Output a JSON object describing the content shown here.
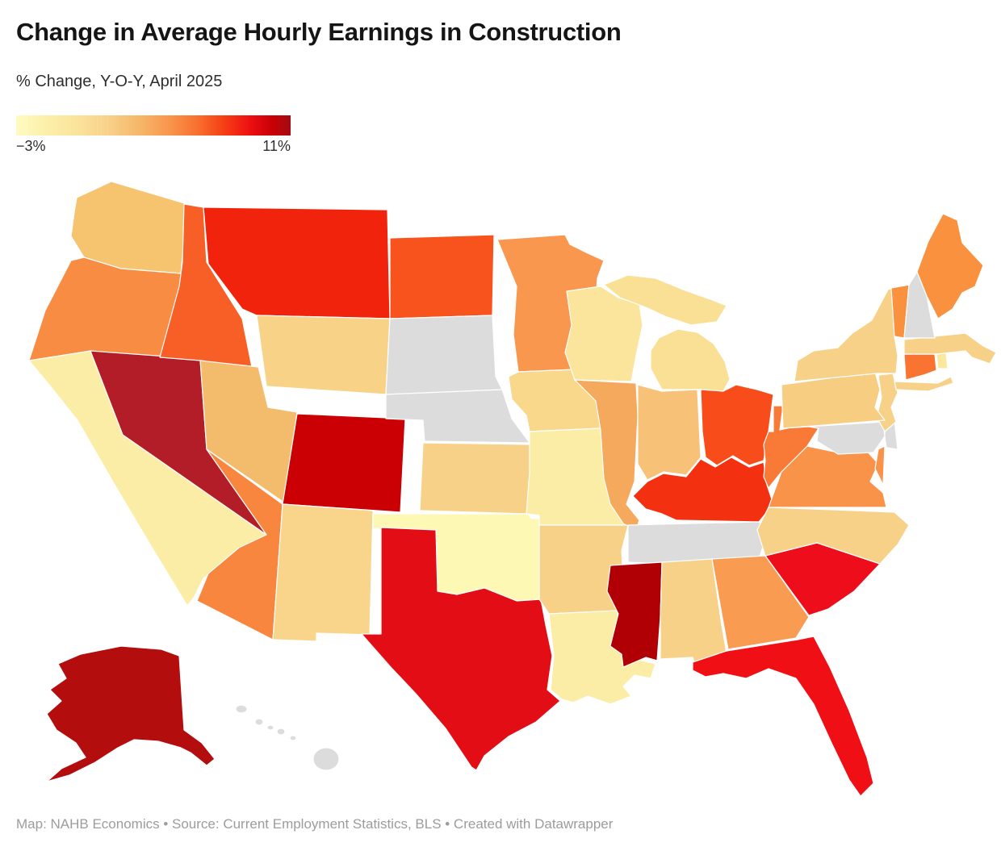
{
  "header": {
    "title": "Change in Average Hourly Earnings in Construction",
    "subtitle": "% Change, Y-O-Y, April 2025"
  },
  "legend": {
    "min_label": "−3%",
    "max_label": "11%",
    "gradient_stops": [
      "#fffcc3 0%",
      "#fcf0ab 10%",
      "#fbe49c 22%",
      "#f8d089 34%",
      "#f6b466 46%",
      "#f9954c 56%",
      "#f8702f 66%",
      "#f53d14 76%",
      "#ee1012 85%",
      "#c90006 93%",
      "#a30b12 100%"
    ]
  },
  "footer": {
    "credit": "Map: NAHB Economics • Source: Current Employment Statistics, BLS • Created with Datawrapper"
  },
  "chart_data": {
    "type": "heatmap",
    "variant": "us-state-choropleth",
    "title": "Change in Average Hourly Earnings in Construction",
    "unit": "% change, year-over-year, April 2025",
    "scale": {
      "min": -3,
      "max": 11,
      "min_label": "−3%",
      "max_label": "11%"
    },
    "no_data_color": "#dcdcdc",
    "no_data_states": [
      "SD",
      "NE",
      "TN",
      "NH",
      "MD",
      "DE",
      "HI"
    ],
    "states": [
      {
        "abbr": "WA",
        "name": "Washington",
        "fill": "#f6c46f",
        "value_est_pct": 1.6
      },
      {
        "abbr": "OR",
        "name": "Oregon",
        "fill": "#f98c43",
        "value_est_pct": 4.4
      },
      {
        "abbr": "CA",
        "name": "California",
        "fill": "#fceda6",
        "value_est_pct": -1.3
      },
      {
        "abbr": "NV",
        "name": "Nevada",
        "fill": "#b21d28",
        "value_est_pct": 11.0
      },
      {
        "abbr": "ID",
        "name": "Idaho",
        "fill": "#f75f26",
        "value_est_pct": 5.9
      },
      {
        "abbr": "MT",
        "name": "Montana",
        "fill": "#f2230c",
        "value_est_pct": 7.9
      },
      {
        "abbr": "WY",
        "name": "Wyoming",
        "fill": "#f8d287",
        "value_est_pct": 0.7
      },
      {
        "abbr": "UT",
        "name": "Utah",
        "fill": "#f3bc6c",
        "value_est_pct": 2.1
      },
      {
        "abbr": "CO",
        "name": "Colorado",
        "fill": "#ca0004",
        "value_est_pct": 10.2
      },
      {
        "abbr": "AZ",
        "name": "Arizona",
        "fill": "#f9863f",
        "value_est_pct": 4.6
      },
      {
        "abbr": "NM",
        "name": "New Mexico",
        "fill": "#f9d58b",
        "value_est_pct": 0.5
      },
      {
        "abbr": "ND",
        "name": "North Dakota",
        "fill": "#f8521d",
        "value_est_pct": 6.3
      },
      {
        "abbr": "SD",
        "name": "South Dakota",
        "fill": "#dcdcdc",
        "value_est_pct": null,
        "no_data": true
      },
      {
        "abbr": "NE",
        "name": "Nebraska",
        "fill": "#dcdcdc",
        "value_est_pct": null,
        "no_data": true
      },
      {
        "abbr": "KS",
        "name": "Kansas",
        "fill": "#f8d189",
        "value_est_pct": 0.8
      },
      {
        "abbr": "OK",
        "name": "Oklahoma",
        "fill": "#fdf8b4",
        "value_est_pct": -2.4
      },
      {
        "abbr": "TX",
        "name": "Texas",
        "fill": "#e20d15",
        "value_est_pct": 9.2
      },
      {
        "abbr": "MN",
        "name": "Minnesota",
        "fill": "#f9974e",
        "value_est_pct": 3.8
      },
      {
        "abbr": "IA",
        "name": "Iowa",
        "fill": "#f9d88c",
        "value_est_pct": 0.4
      },
      {
        "abbr": "MO",
        "name": "Missouri",
        "fill": "#fceda6",
        "value_est_pct": -1.4
      },
      {
        "abbr": "AR",
        "name": "Arkansas",
        "fill": "#f8d189",
        "value_est_pct": 0.8
      },
      {
        "abbr": "LA",
        "name": "Louisiana",
        "fill": "#fceda6",
        "value_est_pct": -1.3
      },
      {
        "abbr": "WI",
        "name": "Wisconsin",
        "fill": "#fbe59c",
        "value_est_pct": -0.4
      },
      {
        "abbr": "IL",
        "name": "Illinois",
        "fill": "#f5a95c",
        "value_est_pct": 2.9
      },
      {
        "abbr": "MI",
        "name": "Michigan",
        "fill": "#fae094",
        "value_est_pct": -0.2
      },
      {
        "abbr": "IN",
        "name": "Indiana",
        "fill": "#f7c278",
        "value_est_pct": 1.7
      },
      {
        "abbr": "OH",
        "name": "Ohio",
        "fill": "#f84d1b",
        "value_est_pct": 6.4
      },
      {
        "abbr": "KY",
        "name": "Kentucky",
        "fill": "#f3300f",
        "value_est_pct": 7.4
      },
      {
        "abbr": "TN",
        "name": "Tennessee",
        "fill": "#dcdcdc",
        "value_est_pct": null,
        "no_data": true
      },
      {
        "abbr": "MS",
        "name": "Mississippi",
        "fill": "#b00005",
        "value_est_pct": 10.6
      },
      {
        "abbr": "AL",
        "name": "Alabama",
        "fill": "#f8d189",
        "value_est_pct": 0.8
      },
      {
        "abbr": "GA",
        "name": "Georgia",
        "fill": "#f99c52",
        "value_est_pct": 3.7
      },
      {
        "abbr": "FL",
        "name": "Florida",
        "fill": "#f00f14",
        "value_est_pct": 8.4
      },
      {
        "abbr": "SC",
        "name": "South Carolina",
        "fill": "#ee0e1b",
        "value_est_pct": 8.6
      },
      {
        "abbr": "NC",
        "name": "North Carolina",
        "fill": "#f8d189",
        "value_est_pct": 0.7
      },
      {
        "abbr": "VA",
        "name": "Virginia",
        "fill": "#f9934a",
        "value_est_pct": 4.0
      },
      {
        "abbr": "WV",
        "name": "West Virginia",
        "fill": "#f87a36",
        "value_est_pct": 4.9
      },
      {
        "abbr": "MD",
        "name": "Maryland",
        "fill": "#dcdcdc",
        "value_est_pct": null,
        "no_data": true
      },
      {
        "abbr": "DE",
        "name": "Delaware",
        "fill": "#dcdcdc",
        "value_est_pct": null,
        "no_data": true
      },
      {
        "abbr": "NJ",
        "name": "New Jersey",
        "fill": "#f8d189",
        "value_est_pct": 0.9
      },
      {
        "abbr": "PA",
        "name": "Pennsylvania",
        "fill": "#f7cd82",
        "value_est_pct": 1.0
      },
      {
        "abbr": "NY",
        "name": "New York",
        "fill": "#f8d189",
        "value_est_pct": 0.8
      },
      {
        "abbr": "CT",
        "name": "Connecticut",
        "fill": "#f97331",
        "value_est_pct": 5.2
      },
      {
        "abbr": "RI",
        "name": "Rhode Island",
        "fill": "#fbe79e",
        "value_est_pct": -0.6
      },
      {
        "abbr": "MA",
        "name": "Massachusetts",
        "fill": "#f8d189",
        "value_est_pct": 0.8
      },
      {
        "abbr": "VT",
        "name": "Vermont",
        "fill": "#f9913f",
        "value_est_pct": 4.3
      },
      {
        "abbr": "NH",
        "name": "New Hampshire",
        "fill": "#dcdcdc",
        "value_est_pct": null,
        "no_data": true
      },
      {
        "abbr": "ME",
        "name": "Maine",
        "fill": "#f9913f",
        "value_est_pct": 4.3
      },
      {
        "abbr": "AK",
        "name": "Alaska",
        "fill": "#b30d0e",
        "value_est_pct": 10.4
      },
      {
        "abbr": "HI",
        "name": "Hawaii",
        "fill": "#dcdcdc",
        "value_est_pct": null,
        "no_data": true
      }
    ]
  }
}
